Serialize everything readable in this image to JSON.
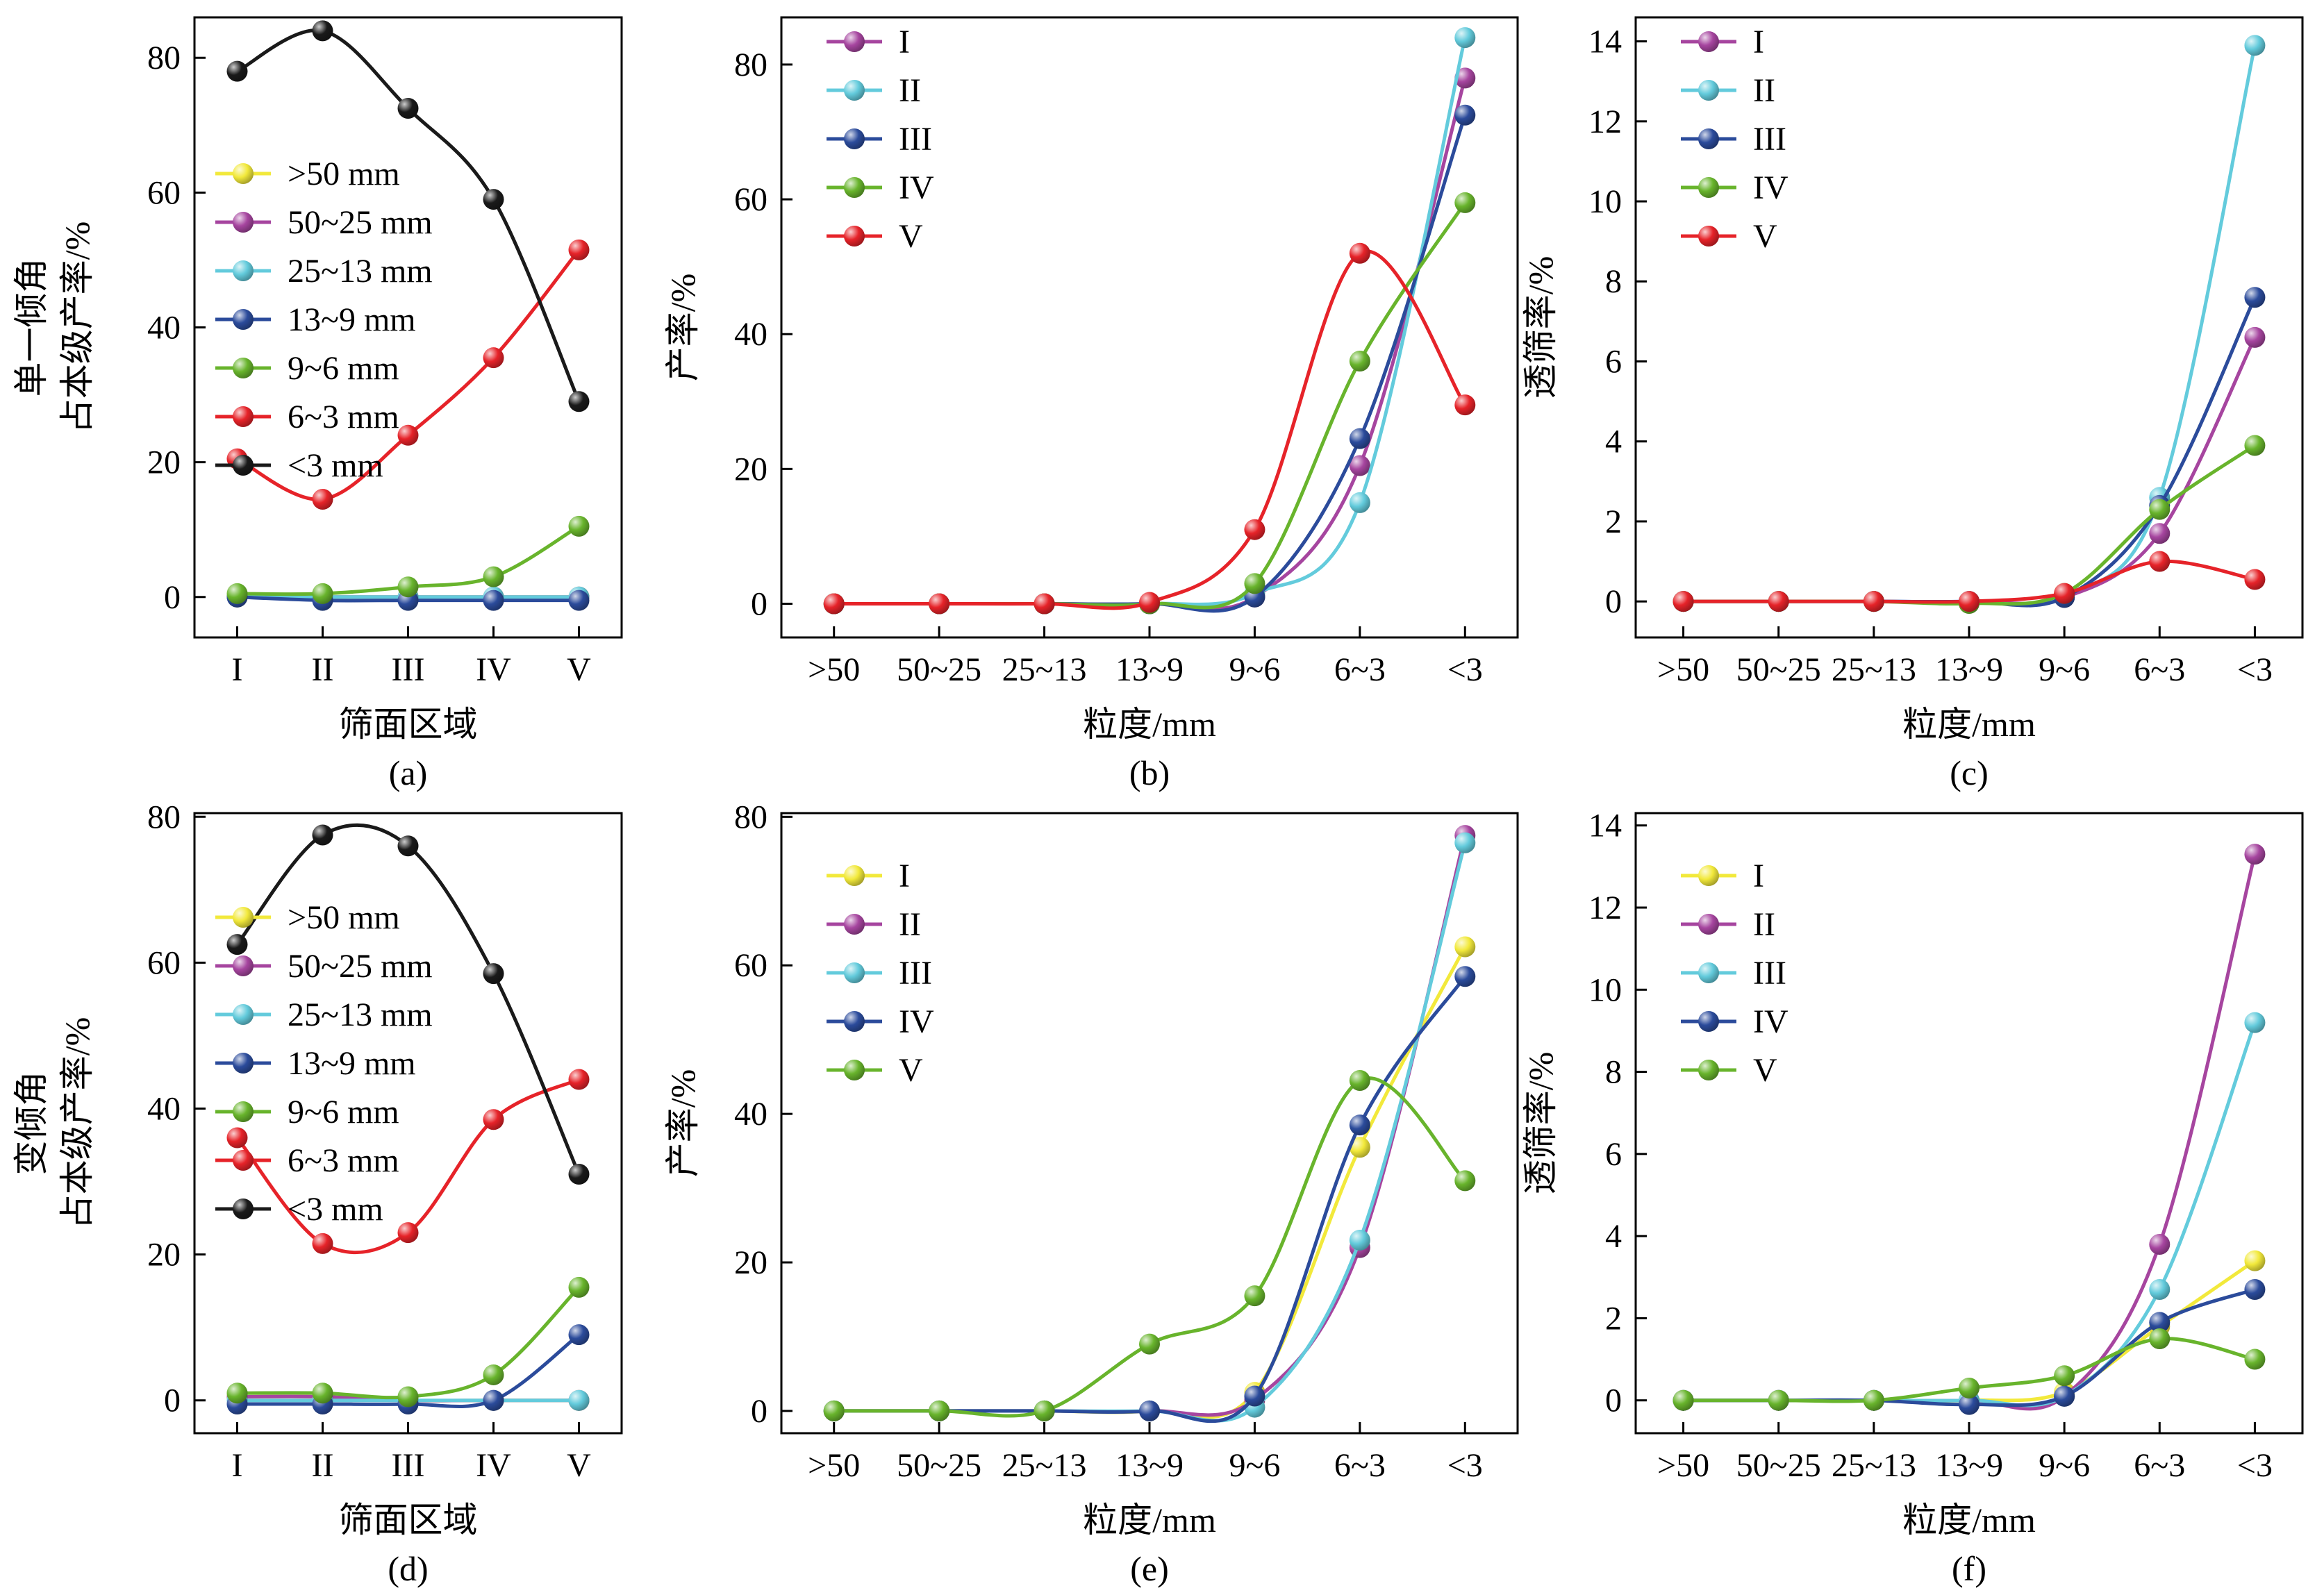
{
  "figure": {
    "background": "#ffffff",
    "caption_labels": [
      "(a)",
      "(b)",
      "(c)",
      "(d)",
      "(e)",
      "(f)"
    ]
  },
  "colors": {
    "yellow": "#f2e93b",
    "purple": "#a6459f",
    "cyan": "#63cbdc",
    "blue": "#2b4b9b",
    "green": "#68b42c",
    "red": "#e62329",
    "black": "#1a1a1a"
  },
  "chart_data": [
    {
      "type": "line",
      "panel": "a",
      "caption": "(a)",
      "ylabel": "单一倾角 占本级产率/%",
      "ylabel_lines": [
        "单一倾角",
        "占本级产率/%"
      ],
      "xlabel": "筛面区域",
      "categories": [
        "I",
        "II",
        "III",
        "IV",
        "V"
      ],
      "ylim": [
        -6,
        86
      ],
      "yticks": [
        0,
        20,
        40,
        60,
        80
      ],
      "grid": false,
      "legend_position": "left-middle",
      "series": [
        {
          "name": ">50 mm",
          "color": "#f2e93b",
          "values": [
            0,
            0,
            0,
            0,
            0
          ]
        },
        {
          "name": "50~25 mm",
          "color": "#a6459f",
          "values": [
            0,
            0,
            0,
            0,
            0
          ]
        },
        {
          "name": "25~13 mm",
          "color": "#63cbdc",
          "values": [
            0,
            0,
            0,
            0,
            0
          ]
        },
        {
          "name": "13~9 mm",
          "color": "#2b4b9b",
          "values": [
            0,
            -0.5,
            -0.5,
            -0.5,
            -0.5
          ]
        },
        {
          "name": "9~6 mm",
          "color": "#68b42c",
          "values": [
            0.5,
            0.5,
            1.5,
            3,
            10.5
          ]
        },
        {
          "name": "6~3 mm",
          "color": "#e62329",
          "values": [
            20.5,
            14.5,
            24,
            35.5,
            51.5
          ]
        },
        {
          "name": "<3 mm",
          "color": "#1a1a1a",
          "values": [
            78,
            84,
            72.5,
            59,
            29
          ]
        }
      ]
    },
    {
      "type": "line",
      "panel": "b",
      "caption": "(b)",
      "ylabel": "产率/%",
      "ylabel_lines": [
        "产率/%"
      ],
      "xlabel": "粒度/mm",
      "categories": [
        ">50",
        "50~25",
        "25~13",
        "13~9",
        "9~6",
        "6~3",
        "<3"
      ],
      "ylim": [
        -5,
        87
      ],
      "yticks": [
        0,
        20,
        40,
        60,
        80
      ],
      "grid": false,
      "legend_position": "top-left",
      "series": [
        {
          "name": "I",
          "color": "#a6459f",
          "values": [
            0,
            0,
            0,
            0,
            1,
            20.5,
            78
          ]
        },
        {
          "name": "II",
          "color": "#63cbdc",
          "values": [
            0,
            0,
            0,
            0,
            1.5,
            15,
            84
          ]
        },
        {
          "name": "III",
          "color": "#2b4b9b",
          "values": [
            0,
            0,
            0,
            0,
            1,
            24.5,
            72.5
          ]
        },
        {
          "name": "IV",
          "color": "#68b42c",
          "values": [
            0,
            0,
            0,
            0,
            3,
            36,
            59.5
          ]
        },
        {
          "name": "V",
          "color": "#e62329",
          "values": [
            0,
            0,
            0,
            0.2,
            11,
            52,
            29.5
          ]
        }
      ]
    },
    {
      "type": "line",
      "panel": "c",
      "caption": "(c)",
      "ylabel": "透筛率/%",
      "ylabel_lines": [
        "透筛率/%"
      ],
      "xlabel": "粒度/mm",
      "categories": [
        ">50",
        "50~25",
        "25~13",
        "13~9",
        "9~6",
        "6~3",
        "<3"
      ],
      "ylim": [
        -0.9,
        14.6
      ],
      "yticks": [
        0,
        2,
        4,
        6,
        8,
        10,
        12,
        14
      ],
      "grid": false,
      "legend_position": "top-left",
      "series": [
        {
          "name": "I",
          "color": "#a6459f",
          "values": [
            0,
            0,
            0,
            0,
            0.1,
            1.7,
            6.6
          ]
        },
        {
          "name": "II",
          "color": "#63cbdc",
          "values": [
            0,
            0,
            0,
            0,
            0.15,
            2.6,
            13.9
          ]
        },
        {
          "name": "III",
          "color": "#2b4b9b",
          "values": [
            0,
            0,
            0,
            0,
            0.1,
            2.4,
            7.6
          ]
        },
        {
          "name": "IV",
          "color": "#68b42c",
          "values": [
            0,
            0,
            0,
            -0.05,
            0.2,
            2.3,
            3.9
          ]
        },
        {
          "name": "V",
          "color": "#e62329",
          "values": [
            0,
            0,
            0,
            0,
            0.2,
            1.0,
            0.55
          ]
        }
      ]
    },
    {
      "type": "line",
      "panel": "d",
      "caption": "(d)",
      "ylabel": "变倾角 占本级产率/%",
      "ylabel_lines": [
        "变倾角",
        "占本级产率/%"
      ],
      "xlabel": "筛面区域",
      "categories": [
        "I",
        "II",
        "III",
        "IV",
        "V"
      ],
      "ylim": [
        -4.5,
        80.5
      ],
      "yticks": [
        0,
        20,
        40,
        60,
        80
      ],
      "grid": false,
      "legend_position": "left-middle",
      "series": [
        {
          "name": ">50 mm",
          "color": "#f2e93b",
          "values": [
            0.5,
            0.5,
            0,
            0,
            0
          ]
        },
        {
          "name": "50~25 mm",
          "color": "#a6459f",
          "values": [
            0.5,
            0.5,
            0,
            0,
            0
          ]
        },
        {
          "name": "25~13 mm",
          "color": "#63cbdc",
          "values": [
            0,
            0,
            0,
            0,
            0
          ]
        },
        {
          "name": "13~9 mm",
          "color": "#2b4b9b",
          "values": [
            -0.5,
            -0.5,
            -0.5,
            0,
            9
          ]
        },
        {
          "name": "9~6 mm",
          "color": "#68b42c",
          "values": [
            1,
            1,
            0.5,
            3.5,
            15.5
          ]
        },
        {
          "name": "6~3 mm",
          "color": "#e62329",
          "values": [
            36,
            21.5,
            23,
            38.5,
            44
          ]
        },
        {
          "name": "<3 mm",
          "color": "#1a1a1a",
          "values": [
            62.5,
            77.5,
            76,
            58.5,
            31
          ]
        }
      ]
    },
    {
      "type": "line",
      "panel": "e",
      "caption": "(e)",
      "ylabel": "产率/%",
      "ylabel_lines": [
        "产率/%"
      ],
      "xlabel": "粒度/mm",
      "categories": [
        ">50",
        "50~25",
        "25~13",
        "13~9",
        "9~6",
        "6~3",
        "<3"
      ],
      "ylim": [
        -3,
        80.5
      ],
      "yticks": [
        0,
        20,
        40,
        60,
        80
      ],
      "grid": false,
      "legend_position": "top-left",
      "series": [
        {
          "name": "I",
          "color": "#f2e93b",
          "values": [
            0,
            0,
            0,
            0,
            2.5,
            35.5,
            62.5
          ]
        },
        {
          "name": "II",
          "color": "#a6459f",
          "values": [
            0,
            0,
            0,
            0,
            1.5,
            22,
            77.5
          ]
        },
        {
          "name": "III",
          "color": "#63cbdc",
          "values": [
            0,
            0,
            0,
            0,
            0.5,
            23,
            76.5
          ]
        },
        {
          "name": "IV",
          "color": "#2b4b9b",
          "values": [
            0,
            0,
            0,
            0,
            2,
            38.5,
            58.5
          ]
        },
        {
          "name": "V",
          "color": "#68b42c",
          "values": [
            0,
            0,
            0,
            9,
            15.5,
            44.5,
            31
          ]
        }
      ]
    },
    {
      "type": "line",
      "panel": "f",
      "caption": "(f)",
      "ylabel": "透筛率/%",
      "ylabel_lines": [
        "透筛率/%"
      ],
      "xlabel": "粒度/mm",
      "categories": [
        ">50",
        "50~25",
        "25~13",
        "13~9",
        "9~6",
        "6~3",
        "<3"
      ],
      "ylim": [
        -0.8,
        14.3
      ],
      "yticks": [
        0,
        2,
        4,
        6,
        8,
        10,
        12,
        14
      ],
      "grid": false,
      "legend_position": "top-left",
      "series": [
        {
          "name": "I",
          "color": "#f2e93b",
          "values": [
            0,
            0,
            0,
            0,
            0.2,
            1.8,
            3.4
          ]
        },
        {
          "name": "II",
          "color": "#a6459f",
          "values": [
            0,
            0,
            0,
            0,
            0.1,
            3.8,
            13.3
          ]
        },
        {
          "name": "III",
          "color": "#63cbdc",
          "values": [
            0,
            0,
            0,
            0,
            0.1,
            2.7,
            9.2
          ]
        },
        {
          "name": "IV",
          "color": "#2b4b9b",
          "values": [
            0,
            0,
            0,
            -0.1,
            0.1,
            1.9,
            2.7
          ]
        },
        {
          "name": "V",
          "color": "#68b42c",
          "values": [
            0,
            0,
            0,
            0.3,
            0.6,
            1.5,
            1.0
          ]
        }
      ]
    }
  ]
}
